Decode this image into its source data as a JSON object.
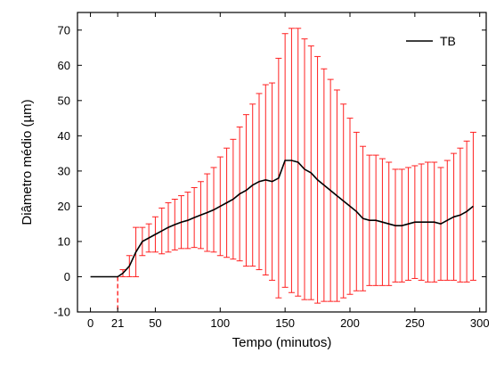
{
  "chart_data": {
    "type": "line",
    "title": "",
    "xlabel": "Tempo (minutos)",
    "ylabel": "Diâmetro médio (µm)",
    "xlim": [
      -10,
      305
    ],
    "ylim": [
      -10,
      75
    ],
    "x_ticks": [
      0,
      21,
      50,
      100,
      150,
      200,
      250,
      300
    ],
    "y_ticks": [
      -10,
      0,
      10,
      20,
      30,
      40,
      50,
      60,
      70
    ],
    "grid": false,
    "legend_position": "top-right",
    "marker_x": 21,
    "colors": {
      "line": "#000000",
      "error_bars": "#ff2020",
      "marker": "#ff2020"
    },
    "series": [
      {
        "name": "TB",
        "x": [
          0,
          5,
          10,
          15,
          21,
          25,
          30,
          35,
          40,
          45,
          50,
          55,
          60,
          65,
          70,
          75,
          80,
          85,
          90,
          95,
          100,
          105,
          110,
          115,
          120,
          125,
          130,
          135,
          140,
          145,
          150,
          155,
          160,
          165,
          170,
          175,
          180,
          185,
          190,
          195,
          200,
          205,
          210,
          215,
          220,
          225,
          230,
          235,
          240,
          245,
          250,
          255,
          260,
          265,
          270,
          275,
          280,
          285,
          290,
          295
        ],
        "y": [
          0,
          0,
          0,
          0,
          0,
          1,
          3,
          7,
          10,
          11,
          12,
          13,
          14,
          14.8,
          15.5,
          16,
          16.8,
          17.5,
          18.2,
          19,
          20,
          21,
          22,
          23.5,
          24.5,
          26,
          27,
          27.5,
          27,
          28,
          33,
          33,
          32.5,
          30.5,
          29.5,
          27.5,
          26,
          24.5,
          23,
          21.5,
          20,
          18.5,
          16.5,
          16,
          16,
          15.5,
          15,
          14.5,
          14.5,
          15,
          15.5,
          15.5,
          15.5,
          15.5,
          15,
          16,
          17,
          17.5,
          18.5,
          20
        ],
        "error": [
          0,
          0,
          0,
          0,
          0,
          1,
          3,
          7,
          4,
          4,
          5,
          6.5,
          7,
          7.2,
          7.5,
          8,
          8.5,
          9.5,
          11,
          12,
          14,
          15.5,
          17,
          19,
          21.5,
          23,
          25,
          27,
          28,
          34,
          36,
          37.5,
          38,
          37,
          36,
          35,
          33,
          31.5,
          30,
          27.5,
          25,
          22.5,
          20.5,
          18.5,
          18.5,
          18,
          17.5,
          16,
          16,
          16,
          16,
          16.5,
          17,
          17,
          16,
          17,
          18,
          19,
          20,
          21
        ]
      }
    ]
  }
}
